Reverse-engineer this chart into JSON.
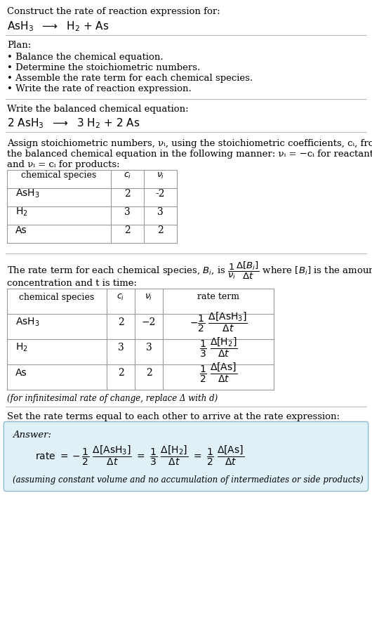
{
  "bg_color": "#ffffff",
  "text_color": "#000000",
  "line_color": "#bbbbbb",
  "answer_box_color": "#dff0f7",
  "answer_box_border": "#88bbcc",
  "sections": {
    "title1": "Construct the rate of reaction expression for:",
    "plan_header": "Plan:",
    "plan_items": [
      "• Balance the chemical equation.",
      "• Determine the stoichiometric numbers.",
      "• Assemble the rate term for each chemical species.",
      "• Write the rate of reaction expression."
    ],
    "balanced_header": "Write the balanced chemical equation:",
    "stoich_line1": "Assign stoichiometric numbers, νᵢ, using the stoichiometric coefficients, cᵢ, from",
    "stoich_line2": "the balanced chemical equation in the following manner: νᵢ = −cᵢ for reactants",
    "stoich_line3": "and νᵢ = cᵢ for products:",
    "table1_col0_header": "chemical species",
    "table1_rows": [
      [
        "AsH3",
        "2",
        "-2"
      ],
      [
        "H2",
        "3",
        "3"
      ],
      [
        "As",
        "2",
        "2"
      ]
    ],
    "rate_line2": "concentration and t is time:",
    "table2_col0_header": "chemical species",
    "table2_rows": [
      [
        "AsH3",
        "2",
        "-2"
      ],
      [
        "H2",
        "3",
        "3"
      ],
      [
        "As",
        "2",
        "2"
      ]
    ],
    "infinitesimal": "(for infinitesimal rate of change, replace Δ with d)",
    "set_equal": "Set the rate terms equal to each other to arrive at the rate expression:",
    "answer_label": "Answer:",
    "final_note": "(assuming constant volume and no accumulation of intermediates or side products)"
  }
}
